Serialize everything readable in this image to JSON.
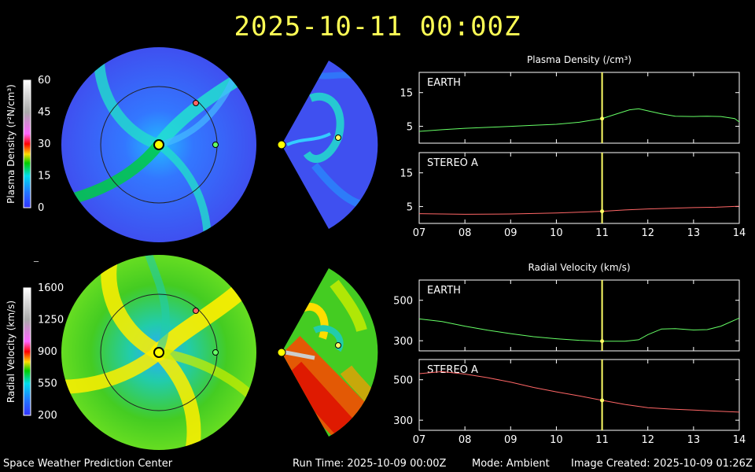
{
  "header": {
    "timestamp": "2025-10-11 00:00Z"
  },
  "footer": {
    "org": "Space Weather Prediction Center",
    "run_time": "Run Time: 2025-10-09 00:00Z",
    "mode": "Mode: Ambient",
    "created": "Image Created: 2025-10-09 01:26Z"
  },
  "separator": "_",
  "colors": {
    "earth": "#66ff66",
    "stereo_a": "#ff6666",
    "marker": "#ffff66",
    "sun": "#ffff00"
  },
  "colorbars": [
    {
      "label": "Plasma Density (r²N/cm³)",
      "ticks": [
        "60",
        "45",
        "30",
        "15",
        "0"
      ],
      "min": 0,
      "max": 60
    },
    {
      "label": "Radial Velocity (km/s)",
      "ticks": [
        "1600",
        "1250",
        "900",
        "550",
        "200"
      ],
      "min": 200,
      "max": 1600
    }
  ],
  "chart_data": [
    {
      "type": "line",
      "title": "Plasma Density (/cm³)",
      "xlabel": "",
      "ylabel": "",
      "xlim": [
        7,
        14
      ],
      "xticks": [
        "07",
        "08",
        "09",
        "10",
        "11",
        "12",
        "13",
        "14"
      ],
      "current_x": 11,
      "panels": [
        {
          "name": "EARTH",
          "color": "#66ff66",
          "ylim": [
            0,
            21
          ],
          "yticks": [
            5,
            15
          ],
          "x": [
            7,
            7.5,
            8,
            8.5,
            9,
            9.5,
            10,
            10.5,
            11,
            11.3,
            11.6,
            11.8,
            12,
            12.3,
            12.6,
            13,
            13.3,
            13.6,
            13.9,
            14
          ],
          "y": [
            3.5,
            4,
            4.4,
            4.7,
            5,
            5.3,
            5.6,
            6.2,
            7.3,
            8.6,
            9.9,
            10.2,
            9.6,
            8.7,
            8,
            7.9,
            8,
            7.9,
            7.3,
            6.3
          ]
        },
        {
          "name": "STEREO A",
          "color": "#ff6666",
          "ylim": [
            0,
            21
          ],
          "yticks": [
            5,
            15
          ],
          "x": [
            7,
            8,
            9,
            10,
            11,
            11.5,
            12,
            12.5,
            13,
            13.5,
            14
          ],
          "y": [
            2.9,
            2.7,
            2.8,
            3.1,
            3.6,
            4.0,
            4.3,
            4.5,
            4.7,
            4.8,
            5.1
          ]
        }
      ]
    },
    {
      "type": "line",
      "title": "Radial Velocity (km/s)",
      "xlabel": "",
      "ylabel": "",
      "xlim": [
        7,
        14
      ],
      "xticks": [
        "07",
        "08",
        "09",
        "10",
        "11",
        "12",
        "13",
        "14"
      ],
      "current_x": 11,
      "panels": [
        {
          "name": "EARTH",
          "color": "#66ff66",
          "ylim": [
            250,
            600
          ],
          "yticks": [
            300,
            500
          ],
          "x": [
            7,
            7.5,
            8,
            8.5,
            9,
            9.5,
            10,
            10.5,
            11,
            11.5,
            11.8,
            12,
            12.3,
            12.6,
            13,
            13.3,
            13.6,
            14
          ],
          "y": [
            408,
            395,
            372,
            352,
            335,
            320,
            310,
            302,
            298,
            298,
            305,
            330,
            358,
            360,
            353,
            355,
            372,
            412
          ]
        },
        {
          "name": "STEREO A",
          "color": "#ff6666",
          "ylim": [
            250,
            600
          ],
          "yticks": [
            300,
            500
          ],
          "x": [
            7,
            7.5,
            8,
            8.5,
            9,
            9.5,
            10,
            10.5,
            11,
            11.5,
            12,
            12.5,
            13,
            13.5,
            14
          ],
          "y": [
            530,
            540,
            528,
            510,
            488,
            462,
            440,
            420,
            398,
            378,
            362,
            355,
            350,
            345,
            340
          ]
        }
      ]
    }
  ]
}
